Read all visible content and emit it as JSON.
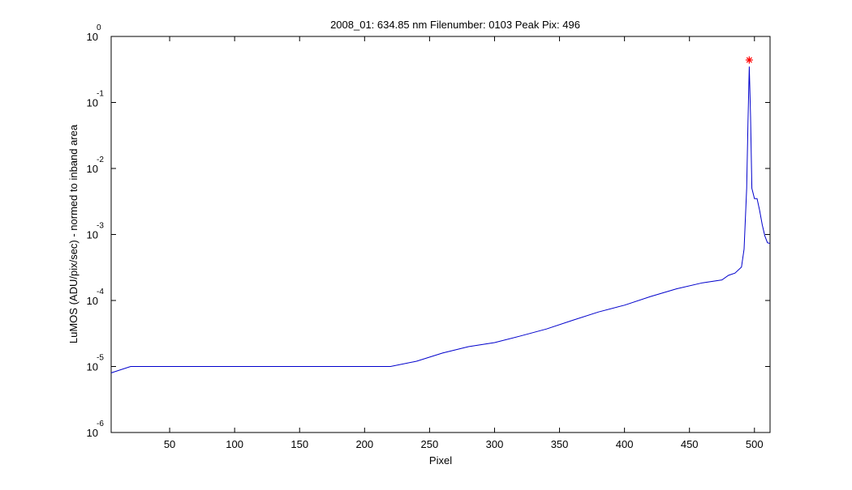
{
  "chart_data": {
    "type": "line",
    "title": "2008_01: 634.85 nm  Filenumber: 0103 Peak Pix: 496",
    "xlabel": "Pixel",
    "ylabel": "LuMOS (ADU/pix/sec) - normed to inband area",
    "xlim": [
      5,
      512
    ],
    "ylim": [
      1e-06,
      1
    ],
    "yscale": "log",
    "grid": false,
    "xticks": [
      50,
      100,
      150,
      200,
      250,
      300,
      350,
      400,
      450,
      500
    ],
    "yticks": [
      {
        "base": "10",
        "exp": "0",
        "value": 1
      },
      {
        "base": "10",
        "exp": "-1",
        "value": 0.1
      },
      {
        "base": "10",
        "exp": "-2",
        "value": 0.01
      },
      {
        "base": "10",
        "exp": "-3",
        "value": 0.001
      },
      {
        "base": "10",
        "exp": "-4",
        "value": 0.0001
      },
      {
        "base": "10",
        "exp": "-5",
        "value": 1e-05
      },
      {
        "base": "10",
        "exp": "-6",
        "value": 1e-06
      }
    ],
    "series": [
      {
        "color": "#0000cc",
        "x": [
          5,
          20,
          40,
          60,
          80,
          100,
          120,
          140,
          160,
          180,
          200,
          220,
          240,
          260,
          280,
          300,
          320,
          340,
          360,
          380,
          400,
          420,
          440,
          460,
          475,
          480,
          485,
          490,
          492,
          494,
          495,
          496,
          497,
          498,
          500,
          502,
          504,
          506,
          508,
          510,
          512
        ],
        "y": [
          8e-06,
          1e-05,
          1e-05,
          1e-05,
          1e-05,
          1e-05,
          1e-05,
          1e-05,
          1e-05,
          1e-05,
          1e-05,
          1e-05,
          1.2e-05,
          1.6e-05,
          2e-05,
          2.3e-05,
          2.9e-05,
          3.7e-05,
          5e-05,
          6.7e-05,
          8.5e-05,
          0.000115,
          0.00015,
          0.000185,
          0.000205,
          0.00024,
          0.00026,
          0.00032,
          0.0006,
          0.005,
          0.05,
          0.35,
          0.06,
          0.005,
          0.0035,
          0.0035,
          0.0023,
          0.0014,
          0.00095,
          0.00075,
          0.00073
        ]
      }
    ],
    "peak_marker": {
      "x": 496,
      "y": 0.44,
      "color": "#ff0000",
      "symbol": "*"
    }
  }
}
